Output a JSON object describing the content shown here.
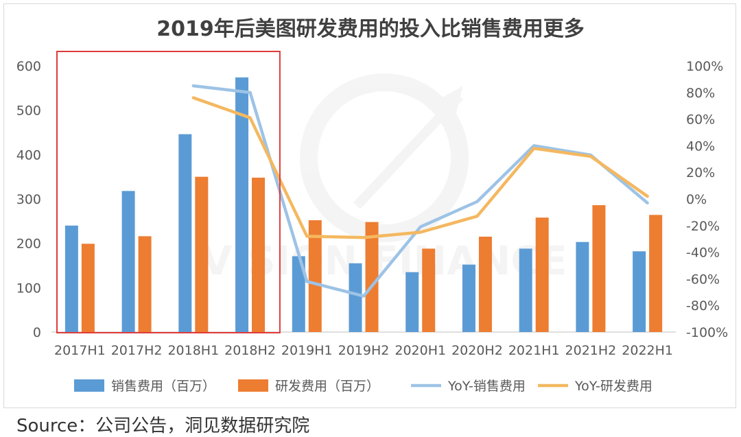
{
  "chart_data": {
    "type": "bar",
    "title": "2019年后美图研发费用的投入比销售费用更多",
    "categories": [
      "2017H1",
      "2017H2",
      "2018H1",
      "2018H2",
      "2019H1",
      "2019H2",
      "2020H1",
      "2020H2",
      "2021H1",
      "2021H2",
      "2022H1"
    ],
    "series": [
      {
        "name": "销售费用（百万）",
        "kind": "bar",
        "axis": "left",
        "color": "#5B9BD5",
        "values": [
          240,
          318,
          446,
          574,
          171,
          155,
          135,
          152,
          188,
          203,
          182
        ]
      },
      {
        "name": "研发费用（百万）",
        "kind": "bar",
        "axis": "left",
        "color": "#ED7D31",
        "values": [
          199,
          216,
          350,
          348,
          252,
          248,
          188,
          215,
          258,
          286,
          264
        ]
      },
      {
        "name": "YoY-销售费用",
        "kind": "line",
        "axis": "right",
        "color": "#9DC3E6",
        "values": [
          null,
          null,
          85,
          80,
          -62,
          -73,
          -21,
          -2,
          40,
          33,
          -3
        ]
      },
      {
        "name": "YoY-研发费用",
        "kind": "line",
        "axis": "right",
        "color": "#F4B860",
        "values": [
          null,
          null,
          76,
          61,
          -28,
          -29,
          -25,
          -13,
          38,
          32,
          2
        ]
      }
    ],
    "y_left": {
      "min": 0,
      "max": 600,
      "ticks": [
        "0",
        "100",
        "200",
        "300",
        "400",
        "500",
        "600"
      ]
    },
    "y_right": {
      "min": -100,
      "max": 100,
      "ticks": [
        "-100%",
        "-80%",
        "-60%",
        "-40%",
        "-20%",
        "0%",
        "20%",
        "40%",
        "60%",
        "80%",
        "100%"
      ]
    },
    "highlight_box": {
      "from_category": "2017H1",
      "to_category": "2018H2",
      "color": "#E03A3A"
    },
    "grid": false,
    "legend_position": "bottom",
    "watermark": "VISION FINANCE"
  },
  "source": "Source：公司公告，洞见数据研究院"
}
